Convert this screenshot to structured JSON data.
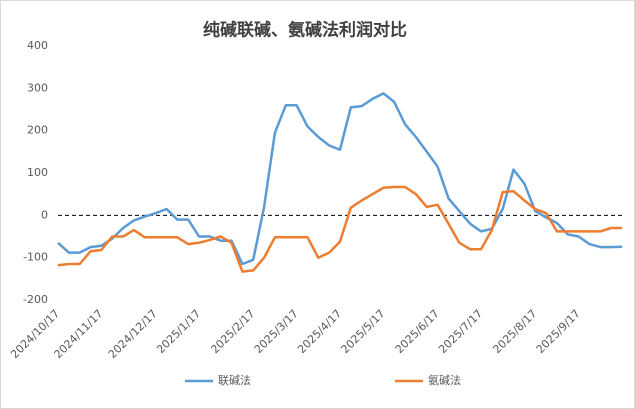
{
  "chart_data": {
    "type": "line",
    "title": "纯碱联碱、氨碱法利润对比",
    "categories": [
      "2024/10/17",
      null,
      null,
      null,
      "2024/11/17",
      null,
      null,
      null,
      null,
      "2024/12/17",
      null,
      null,
      null,
      "2025/1/17",
      null,
      null,
      null,
      null,
      "2025/2/17",
      null,
      null,
      null,
      "2025/3/17",
      null,
      null,
      null,
      "2025/4/17",
      null,
      null,
      null,
      "2025/5/17",
      null,
      null,
      null,
      null,
      "2025/6/17",
      null,
      null,
      null,
      "2025/7/17",
      null,
      null,
      null,
      null,
      "2025/8/17",
      null,
      null,
      null,
      "2025/9/17",
      null,
      null,
      null,
      null
    ],
    "series": [
      {
        "name": "联碱法",
        "color": "#5b9bd5",
        "values": [
          -65,
          -88,
          -88,
          -75,
          -72,
          -55,
          -30,
          -12,
          -3,
          5,
          15,
          -10,
          -10,
          -50,
          -50,
          -60,
          -60,
          -115,
          -105,
          20,
          195,
          260,
          260,
          210,
          185,
          165,
          155,
          255,
          258,
          275,
          288,
          268,
          215,
          185,
          150,
          115,
          40,
          10,
          -20,
          -38,
          -32,
          15,
          108,
          75,
          10,
          -5,
          -18,
          -45,
          -50,
          -68,
          -75,
          -75,
          -74
        ]
      },
      {
        "name": "氨碱法",
        "color": "#ed7d31",
        "values": [
          -118,
          -115,
          -115,
          -85,
          -82,
          -50,
          -50,
          -35,
          -52,
          -52,
          -52,
          -52,
          -68,
          -65,
          -58,
          -50,
          -65,
          -133,
          -130,
          -100,
          -52,
          -52,
          -52,
          -52,
          -100,
          -88,
          -62,
          18,
          35,
          50,
          65,
          67,
          67,
          50,
          20,
          25,
          -20,
          -65,
          -80,
          -80,
          -35,
          55,
          57,
          35,
          15,
          5,
          -38,
          -38,
          -38,
          -38,
          -38,
          -30,
          -30
        ]
      }
    ],
    "ylim": [
      -200,
      400
    ],
    "yticks": [
      -200,
      -100,
      0,
      100,
      200,
      300,
      400
    ],
    "reference_line": 0,
    "grid": false,
    "legend": "bottom"
  }
}
